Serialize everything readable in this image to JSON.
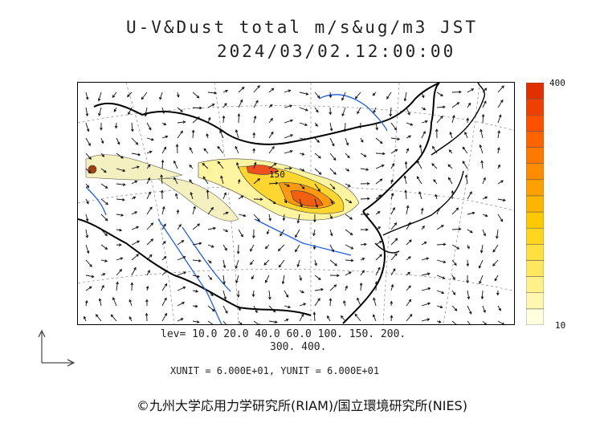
{
  "title": {
    "line1": "U-V&Dust total m/s&ug/m3 JST",
    "line2": "2024/03/02.12:00:00"
  },
  "colorbar": {
    "max_label": "400",
    "min_label": "10",
    "colors": [
      "#ffffe0",
      "#fff7b0",
      "#fff08a",
      "#ffe860",
      "#ffe040",
      "#ffd520",
      "#ffc800",
      "#ffb400",
      "#ffa000",
      "#ff8c00",
      "#ff7800",
      "#ff6400",
      "#ff5000",
      "#f04000",
      "#e03000"
    ]
  },
  "levels": {
    "line1": "lev= 10.0 20.0 40.0 60.0 100. 150. 200.",
    "line2": "300. 400."
  },
  "units": "XUNIT = 6.000E+01, YUNIT = 6.000E+01",
  "credit": "©九州大学応用力学研究所(RIAM)/国立環境研究所(NIES)",
  "map_labels": {
    "contour_label": "150"
  }
}
